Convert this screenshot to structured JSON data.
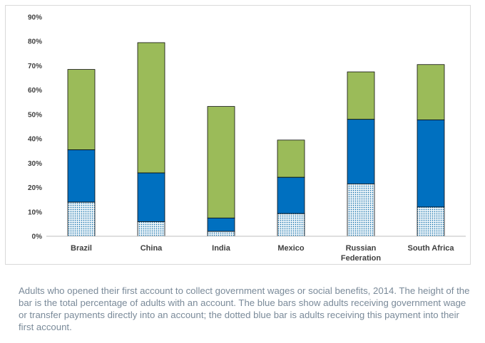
{
  "chart_data": {
    "type": "bar",
    "stacked": true,
    "categories": [
      "Brazil",
      "China",
      "India",
      "Mexico",
      "Russian Federation",
      "South Africa"
    ],
    "category_lines": [
      [
        "Brazil"
      ],
      [
        "China"
      ],
      [
        "India"
      ],
      [
        "Mexico"
      ],
      [
        "Russian",
        "Federation"
      ],
      [
        "South Africa"
      ]
    ],
    "totals": [
      68.5,
      79.5,
      53.3,
      39.5,
      67.5,
      70.5
    ],
    "direct_deposit": [
      35.5,
      26,
      7.5,
      24.2,
      48,
      47.8
    ],
    "first_account": [
      14,
      6,
      2,
      9.3,
      21.5,
      12
    ],
    "ylim": [
      0,
      90
    ],
    "yticks": [
      "0%",
      "10%",
      "20%",
      "30%",
      "40%",
      "50%",
      "60%",
      "70%",
      "80%",
      "90%"
    ],
    "grid": false,
    "colors": {
      "total": "#9bbb59",
      "direct": "#0070c0",
      "dotted_bg": "#eaf3f8",
      "dotted_dot": "#0b6ba8",
      "axis": "#bfbfbf",
      "outline": "#000000"
    }
  },
  "caption": "Adults who opened their first account to collect government wages or social benefits, 2014. The height of the bar is the total percentage of adults with an account. The blue bars show adults receiving government wage or transfer payments directly into an account; the dotted blue bar is adults receiving this payment into their first account."
}
